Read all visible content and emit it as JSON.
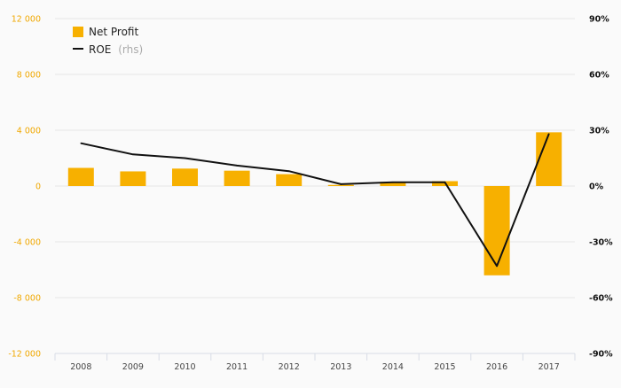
{
  "chart_data": {
    "type": "bar+line",
    "categories": [
      "2008",
      "2009",
      "2010",
      "2011",
      "2012",
      "2013",
      "2014",
      "2015",
      "2016",
      "2017"
    ],
    "series": [
      {
        "name": "Net Profit",
        "axis": "left",
        "kind": "bar",
        "color": "#f7b000",
        "values": [
          1300,
          1050,
          1250,
          1100,
          850,
          80,
          300,
          350,
          -6400,
          3850
        ]
      },
      {
        "name": "ROE",
        "axis": "right",
        "kind": "line",
        "color": "#111111",
        "values": [
          23,
          17,
          15,
          11,
          8,
          1,
          2,
          2,
          -43,
          28
        ]
      }
    ],
    "left_axis": {
      "ylim": [
        -12000,
        12000
      ],
      "ticks": [
        12000,
        8000,
        4000,
        0,
        -4000,
        -8000,
        -12000
      ],
      "tick_labels": [
        "12 000",
        "8 000",
        "4 000",
        "0",
        "-4 000",
        "-8 000",
        "-12 000"
      ]
    },
    "right_axis": {
      "ylim": [
        -90,
        90
      ],
      "ticks": [
        90,
        60,
        30,
        0,
        -30,
        -60,
        -90
      ],
      "tick_labels": [
        "90%",
        "60%",
        "30%",
        "0%",
        "-30%",
        "-60%",
        "-90%"
      ]
    },
    "legend": {
      "position": "top-left",
      "items": [
        {
          "label": "Net Profit",
          "suffix": ""
        },
        {
          "label": "ROE",
          "suffix": "(rhs)"
        }
      ]
    }
  }
}
